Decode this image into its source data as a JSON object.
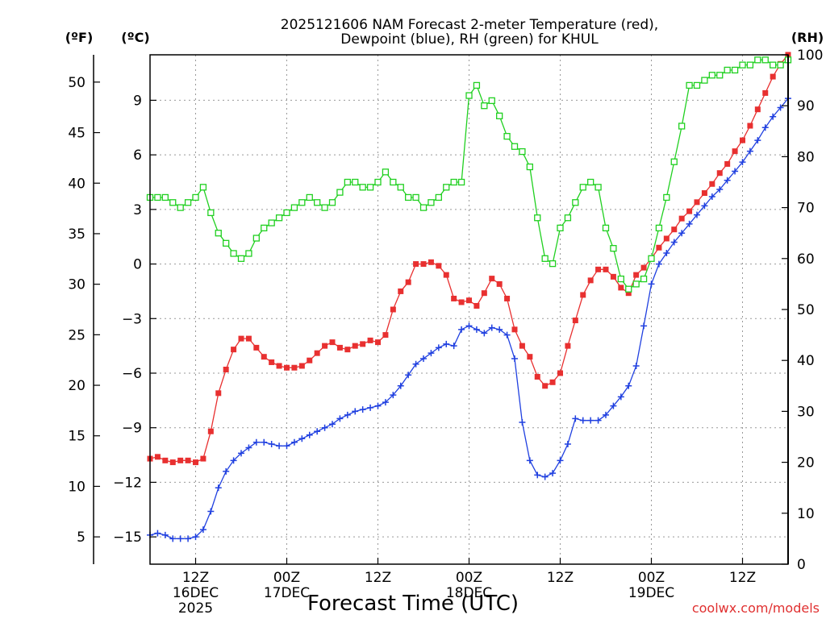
{
  "title_line1": "2025121606 NAM Forecast 2-meter Temperature (red),",
  "title_line2": "Dewpoint (blue), RH (green) for KHUL",
  "credit": "coolwx.com/models",
  "chart_data": {
    "type": "line",
    "title": "2025121606 NAM Forecast 2-meter Temperature (red), Dewpoint (blue), RH (green) for KHUL",
    "xlabel": "Forecast Time (UTC)",
    "y_left_units": [
      "(ºF)",
      "(ºC)"
    ],
    "y_right_units": "(RH)",
    "x_range_hours": [
      0,
      84
    ],
    "ylim_celsius": [
      -16.5,
      11.5
    ],
    "ylim_fahrenheit": [
      2.3,
      52.7
    ],
    "ylim_rh": [
      0,
      100
    ],
    "grid": true,
    "fahrenheit_ticks": [
      5,
      10,
      15,
      20,
      25,
      30,
      35,
      40,
      45,
      50
    ],
    "celsius_ticks": [
      -15,
      -12,
      -9,
      -6,
      -3,
      0,
      3,
      6,
      9
    ],
    "rh_ticks": [
      0,
      10,
      20,
      30,
      40,
      50,
      60,
      70,
      80,
      90,
      100
    ],
    "x_ticks": [
      {
        "hour": 6,
        "label": "12Z",
        "line2": "16DEC",
        "line3": "2025"
      },
      {
        "hour": 18,
        "label": "00Z",
        "line2": "17DEC",
        "line3": ""
      },
      {
        "hour": 30,
        "label": "12Z",
        "line2": "",
        "line3": ""
      },
      {
        "hour": 42,
        "label": "00Z",
        "line2": "18DEC",
        "line3": ""
      },
      {
        "hour": 54,
        "label": "12Z",
        "line2": "",
        "line3": ""
      },
      {
        "hour": 66,
        "label": "00Z",
        "line2": "19DEC",
        "line3": ""
      },
      {
        "hour": 78,
        "label": "12Z",
        "line2": "",
        "line3": ""
      }
    ],
    "x": [
      0,
      1,
      2,
      3,
      4,
      5,
      6,
      7,
      8,
      9,
      10,
      11,
      12,
      13,
      14,
      15,
      16,
      17,
      18,
      19,
      20,
      21,
      22,
      23,
      24,
      25,
      26,
      27,
      28,
      29,
      30,
      31,
      32,
      33,
      34,
      35,
      36,
      37,
      38,
      39,
      40,
      41,
      42,
      43,
      44,
      45,
      46,
      47,
      48,
      49,
      50,
      51,
      52,
      53,
      54,
      55,
      56,
      57,
      58,
      59,
      60,
      61,
      62,
      63,
      64,
      65,
      66,
      67,
      68,
      69,
      70,
      71,
      72,
      73,
      74,
      75,
      76,
      77,
      78,
      79,
      80,
      81,
      82,
      83,
      84
    ],
    "series": [
      {
        "name": "Temperature",
        "color": "#e83030",
        "marker": "filled-square",
        "units": "°C",
        "values": [
          -10.7,
          -10.6,
          -10.8,
          -10.9,
          -10.8,
          -10.8,
          -10.9,
          -10.7,
          -9.2,
          -7.1,
          -5.8,
          -4.7,
          -4.1,
          -4.1,
          -4.6,
          -5.1,
          -5.4,
          -5.6,
          -5.7,
          -5.7,
          -5.6,
          -5.3,
          -4.9,
          -4.5,
          -4.3,
          -4.6,
          -4.7,
          -4.5,
          -4.4,
          -4.2,
          -4.3,
          -3.9,
          -2.5,
          -1.5,
          -1.0,
          0.0,
          0.0,
          0.1,
          -0.1,
          -0.6,
          -1.9,
          -2.1,
          -2.0,
          -2.3,
          -1.6,
          -0.8,
          -1.1,
          -1.9,
          -3.6,
          -4.5,
          -5.1,
          -6.2,
          -6.7,
          -6.5,
          -6.0,
          -4.5,
          -3.1,
          -1.7,
          -0.9,
          -0.3,
          -0.3,
          -0.7,
          -1.3,
          -1.6,
          -0.6,
          -0.2,
          0.3,
          0.9,
          1.4,
          1.9,
          2.5,
          2.9,
          3.4,
          3.9,
          4.4,
          5.0,
          5.5,
          6.2,
          6.8,
          7.6,
          8.5,
          9.4,
          10.3,
          11.0,
          11.5
        ]
      },
      {
        "name": "Dewpoint",
        "color": "#2040e0",
        "marker": "plus",
        "units": "°C",
        "values": [
          -14.9,
          -14.8,
          -14.9,
          -15.1,
          -15.1,
          -15.1,
          -15.0,
          -14.6,
          -13.6,
          -12.3,
          -11.4,
          -10.8,
          -10.4,
          -10.1,
          -9.8,
          -9.8,
          -9.9,
          -10.0,
          -10.0,
          -9.8,
          -9.6,
          -9.4,
          -9.2,
          -9.0,
          -8.8,
          -8.5,
          -8.3,
          -8.1,
          -8.0,
          -7.9,
          -7.8,
          -7.6,
          -7.2,
          -6.7,
          -6.1,
          -5.5,
          -5.2,
          -4.9,
          -4.6,
          -4.4,
          -4.5,
          -3.6,
          -3.4,
          -3.6,
          -3.8,
          -3.5,
          -3.6,
          -3.9,
          -5.2,
          -8.7,
          -10.8,
          -11.6,
          -11.7,
          -11.5,
          -10.8,
          -9.9,
          -8.5,
          -8.6,
          -8.6,
          -8.6,
          -8.3,
          -7.8,
          -7.3,
          -6.7,
          -5.6,
          -3.4,
          -1.1,
          0.0,
          0.6,
          1.2,
          1.7,
          2.2,
          2.7,
          3.2,
          3.7,
          4.1,
          4.6,
          5.1,
          5.6,
          6.2,
          6.8,
          7.5,
          8.1,
          8.6,
          9.1
        ]
      },
      {
        "name": "RH",
        "color": "#20d020",
        "marker": "open-square",
        "units": "%",
        "values": [
          72,
          72,
          72,
          71,
          70,
          71,
          72,
          74,
          69,
          65,
          63,
          61,
          60,
          61,
          64,
          66,
          67,
          68,
          69,
          70,
          71,
          72,
          71,
          70,
          71,
          73,
          75,
          75,
          74,
          74,
          75,
          77,
          75,
          74,
          72,
          72,
          70,
          71,
          72,
          74,
          75,
          75,
          92,
          94,
          90,
          91,
          88,
          84,
          82,
          81,
          78,
          68,
          60,
          59,
          66,
          68,
          71,
          74,
          75,
          74,
          66,
          62,
          56,
          54,
          55,
          56,
          60,
          66,
          72,
          79,
          86,
          94,
          94,
          95,
          96,
          96,
          97,
          97,
          98,
          98,
          99,
          99,
          98,
          98,
          99
        ]
      }
    ]
  }
}
